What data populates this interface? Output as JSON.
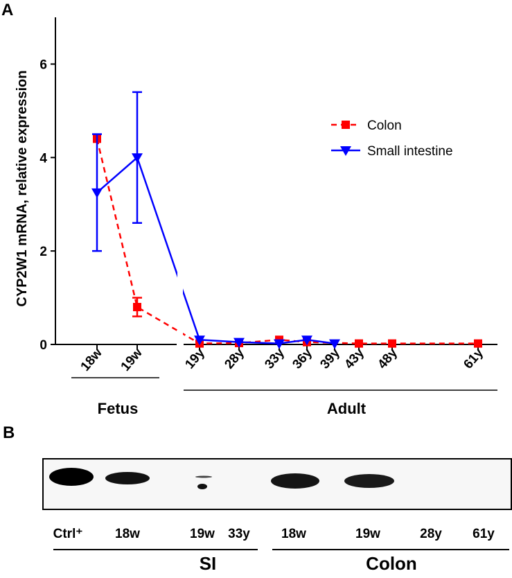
{
  "chart_data": {
    "type": "line",
    "panel_label": "A",
    "y_label": "CYP2W1 mRNA, relative expression",
    "categories": [
      "18w",
      "19w",
      "19y",
      "28y",
      "33y",
      "36y",
      "39y",
      "43y",
      "48y",
      "61y"
    ],
    "groups": [
      {
        "label": "Fetus"
      },
      {
        "label": "Adult"
      }
    ],
    "ylim": [
      0,
      7
    ],
    "yticks": [
      0,
      2,
      4,
      6
    ],
    "series": [
      {
        "name": "Colon",
        "color": "#ff0000",
        "linestyle": "dashed",
        "marker": "square",
        "values": [
          4.4,
          0.8,
          0.02,
          0.03,
          0.1,
          0.05,
          null,
          0.02,
          0.02,
          0.02
        ],
        "errors": [
          null,
          0.2,
          null,
          null,
          null,
          null,
          null,
          null,
          null,
          null
        ]
      },
      {
        "name": "Small intestine",
        "color": "#0000ff",
        "linestyle": "solid",
        "marker": "triangle-down",
        "values": [
          3.25,
          4.0,
          0.1,
          0.05,
          0.02,
          0.1,
          0.02,
          null,
          null,
          null
        ],
        "errors": [
          1.25,
          1.4,
          null,
          null,
          null,
          null,
          null,
          null,
          null,
          null
        ]
      }
    ]
  },
  "blot": {
    "panel_label": "B",
    "lanes": [
      "Ctrl⁺",
      "18w",
      "19w",
      "33y",
      "18w",
      "19w",
      "28y",
      "61y"
    ],
    "groups": [
      {
        "label": "SI"
      },
      {
        "label": "Colon"
      }
    ]
  }
}
